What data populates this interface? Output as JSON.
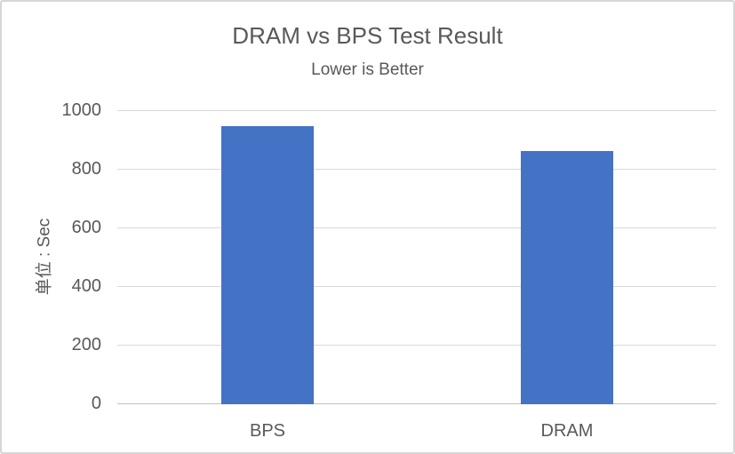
{
  "chart_data": {
    "type": "bar",
    "title": "DRAM vs BPS Test Result",
    "subtitle": "Lower is Better",
    "categories": [
      "BPS",
      "DRAM"
    ],
    "values": [
      945,
      860
    ],
    "xlabel": "",
    "ylabel": "单位 : Sec",
    "ylim": [
      0,
      1000
    ],
    "yticks": [
      0,
      200,
      400,
      600,
      800,
      1000
    ],
    "legend": "none",
    "grid": true,
    "colors": {
      "bar": "#4472C4",
      "text": "#595959",
      "gridline": "#D9D9D9",
      "axis_line": "#C0C0C0",
      "border": "#D6D6D6",
      "background": "#FFFFFF"
    }
  }
}
